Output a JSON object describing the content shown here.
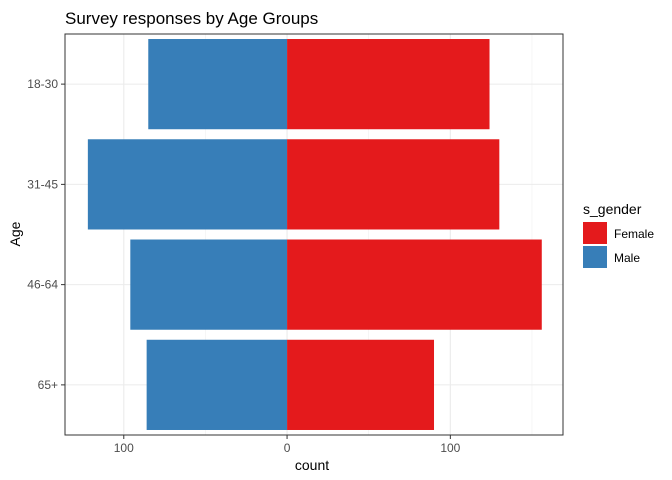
{
  "chart_data": {
    "type": "bar",
    "orientation": "horizontal",
    "layout": "diverging",
    "title": "Survey responses by Age Groups",
    "xlabel": "count",
    "ylabel": "Age",
    "categories": [
      "18-30",
      "31-45",
      "46-64",
      "65+"
    ],
    "series": [
      {
        "name": "Female",
        "values": [
          124,
          130,
          156,
          90
        ],
        "color": "#E41A1C"
      },
      {
        "name": "Male",
        "values": [
          -85,
          -122,
          -96,
          -86
        ],
        "color": "#377EB8"
      }
    ],
    "xlim": [
      -136,
      169
    ],
    "xticks": [
      -100,
      0,
      100
    ],
    "xtick_labels": [
      "100",
      "0",
      "100"
    ],
    "grid": true,
    "legend": {
      "title": "s_gender",
      "position": "right"
    }
  }
}
